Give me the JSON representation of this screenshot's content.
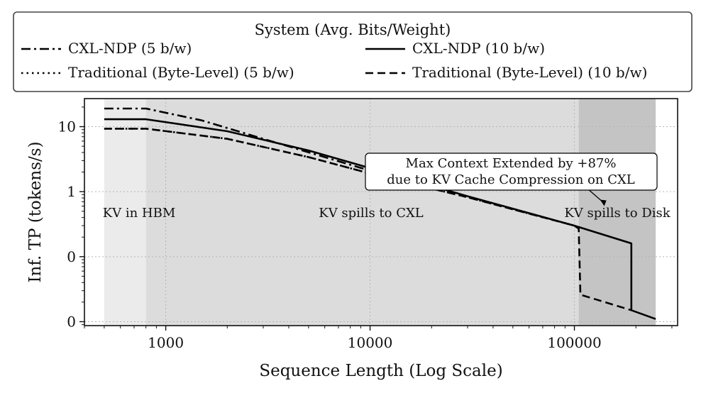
{
  "chart_data": {
    "type": "line",
    "title": "",
    "xlabel": "Sequence Length (Log Scale)",
    "ylabel": "Inf. TP (tokens/s)",
    "x_scale": "log",
    "y_scale": "log",
    "xlim": [
      400,
      320000
    ],
    "ylim": [
      0.0087,
      27
    ],
    "x_ticks": [
      1000,
      10000,
      100000
    ],
    "x_tick_labels": [
      "1000",
      "10000",
      "100000"
    ],
    "y_ticks": [
      0.01,
      0.1,
      1,
      10
    ],
    "y_tick_labels": [
      "0",
      "0",
      "1",
      "10"
    ],
    "grid": true,
    "legend": {
      "title": "System (Avg. Bits/Weight)",
      "placement": "top, above plot",
      "entries": [
        {
          "label": "CXL-NDP (5 b/w)",
          "style": "dashdot"
        },
        {
          "label": "CXL-NDP (10 b/w)",
          "style": "solid"
        },
        {
          "label": "Traditional (Byte-Level) (5 b/w)",
          "style": "dotted"
        },
        {
          "label": "Traditional (Byte-Level) (10 b/w)",
          "style": "dashed"
        }
      ]
    },
    "regions": [
      {
        "label": "KV in HBM",
        "x_start": 500,
        "x_end": 800,
        "color": "#ebebeb"
      },
      {
        "label": "KV spills to CXL",
        "x_start": 800,
        "x_end": 105000,
        "color": "#dcdcdc"
      },
      {
        "label": "KV spills to Disk",
        "x_start": 105000,
        "x_end": 250000,
        "color": "#c4c4c4"
      }
    ],
    "annotation": {
      "lines": [
        "Max Context Extended by +87%",
        "due to KV Cache Compression on CXL"
      ],
      "arrow_to": [
        140000,
        0.6
      ]
    },
    "series": [
      {
        "name": "CXL-NDP (5 b/w)",
        "style": "dashdot",
        "x": [
          500,
          800,
          1500,
          3000,
          6000,
          10000
        ],
        "y": [
          19,
          19,
          12.5,
          6.5,
          3.4,
          2.1
        ]
      },
      {
        "name": "CXL-NDP (10 b/w)",
        "style": "solid",
        "x": [
          500,
          800,
          2000,
          5000,
          10000,
          30000,
          100000,
          190000,
          190000,
          250000
        ],
        "y": [
          13,
          13,
          8.5,
          4.3,
          2.3,
          0.85,
          0.3,
          0.16,
          0.015,
          0.011
        ]
      },
      {
        "name": "Traditional (Byte-Level) (5 b/w)",
        "style": "dotted",
        "x": [
          500,
          800,
          2000,
          5000,
          10000,
          30000,
          100000
        ],
        "y": [
          9.3,
          9.3,
          6.5,
          3.4,
          1.9,
          0.82,
          0.3
        ]
      },
      {
        "name": "Traditional (Byte-Level) (10 b/w)",
        "style": "dashed",
        "x": [
          500,
          800,
          2000,
          5000,
          10000,
          30000,
          100000,
          105000,
          107000,
          190000
        ],
        "y": [
          9.3,
          9.3,
          6.5,
          3.4,
          1.9,
          0.82,
          0.3,
          0.27,
          0.026,
          0.015
        ]
      }
    ]
  }
}
